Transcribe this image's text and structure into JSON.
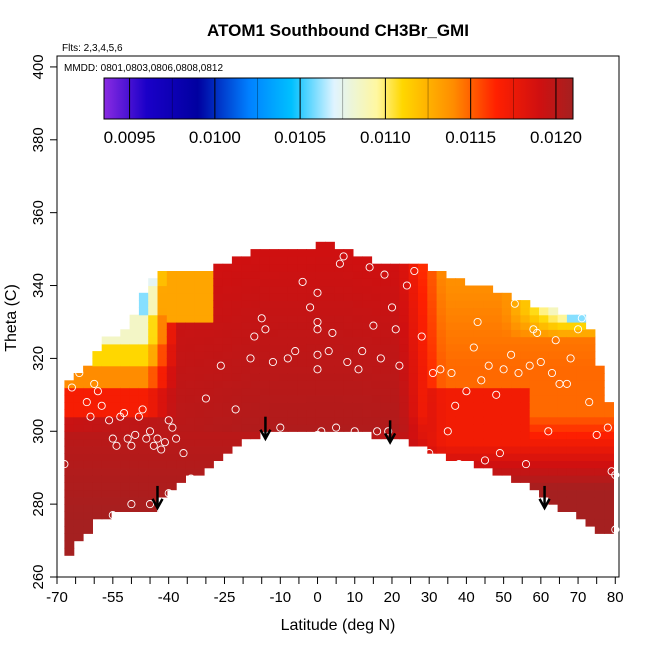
{
  "chart_data": {
    "type": "heatmap",
    "title": "ATOM1 Southbound CH3Br_GMI",
    "subtitle_flights": "Flts: 2,3,4,5,6",
    "subtitle_dates": "MMDD: 0801,0803,0806,0808,0812",
    "xlabel": "Latitude (deg N)",
    "ylabel": "Theta (C)",
    "xlim": [
      -70,
      81
    ],
    "ylim": [
      260,
      403
    ],
    "x_ticks": [
      -70,
      -55,
      -40,
      -25,
      -10,
      0,
      10,
      20,
      30,
      40,
      50,
      60,
      70,
      80
    ],
    "x_ticks_minor": [
      -65,
      -60,
      -50,
      -45,
      -35,
      -30,
      -20,
      -15,
      -5,
      5,
      15,
      25,
      35,
      45,
      55,
      65,
      75
    ],
    "y_ticks": [
      260,
      280,
      300,
      320,
      340,
      360,
      380,
      400
    ],
    "colorbar": {
      "ticks": [
        0.0095,
        0.01,
        0.0105,
        0.011,
        0.0115,
        0.012
      ],
      "tick_labels": [
        "0.0095",
        "0.0100",
        "0.0105",
        "0.0110",
        "0.0115",
        "0.0120"
      ],
      "range": [
        0.00935,
        0.0121
      ],
      "stops": [
        {
          "v": 0.00935,
          "c": "#8a2be2"
        },
        {
          "v": 0.0096,
          "c": "#1a00c8"
        },
        {
          "v": 0.0099,
          "c": "#0000a0"
        },
        {
          "v": 0.0102,
          "c": "#0080ff"
        },
        {
          "v": 0.01045,
          "c": "#00c0ff"
        },
        {
          "v": 0.0107,
          "c": "#e0f4ff"
        },
        {
          "v": 0.01095,
          "c": "#fff7a0"
        },
        {
          "v": 0.0111,
          "c": "#ffd700"
        },
        {
          "v": 0.0114,
          "c": "#ff8c00"
        },
        {
          "v": 0.01165,
          "c": "#ff2000"
        },
        {
          "v": 0.0119,
          "c": "#d01010"
        },
        {
          "v": 0.0121,
          "c": "#a52020"
        }
      ]
    },
    "field": {
      "upper_boundary": [
        [
          -68,
          312
        ],
        [
          -65,
          316
        ],
        [
          -60,
          320
        ],
        [
          -58,
          325
        ],
        [
          -54,
          327
        ],
        [
          -50,
          330
        ],
        [
          -48,
          335
        ],
        [
          -44,
          343
        ],
        [
          -40,
          343
        ],
        [
          -36,
          343
        ],
        [
          -30,
          344
        ],
        [
          -25,
          346
        ],
        [
          -20,
          348
        ],
        [
          -15,
          350
        ],
        [
          -10,
          350
        ],
        [
          -5,
          350
        ],
        [
          0,
          351
        ],
        [
          5,
          351
        ],
        [
          10,
          349
        ],
        [
          15,
          347
        ],
        [
          20,
          346
        ],
        [
          25,
          345
        ],
        [
          30,
          345
        ],
        [
          35,
          342
        ],
        [
          40,
          341
        ],
        [
          45,
          340
        ],
        [
          50,
          338
        ],
        [
          55,
          336
        ],
        [
          60,
          334
        ],
        [
          65,
          333
        ],
        [
          70,
          332
        ],
        [
          72,
          332
        ],
        [
          74,
          324
        ],
        [
          76,
          316
        ],
        [
          78,
          308
        ],
        [
          80,
          300
        ],
        [
          80,
          286
        ]
      ],
      "lower_boundary": [
        [
          -68,
          266
        ],
        [
          -65,
          268
        ],
        [
          -60,
          275
        ],
        [
          -55,
          277
        ],
        [
          -50,
          278
        ],
        [
          -45,
          278
        ],
        [
          -40,
          283
        ],
        [
          -35,
          287
        ],
        [
          -30,
          290
        ],
        [
          -25,
          293
        ],
        [
          -20,
          297
        ],
        [
          -15,
          299
        ],
        [
          -10,
          300
        ],
        [
          -5,
          300
        ],
        [
          0,
          300
        ],
        [
          5,
          300
        ],
        [
          10,
          300
        ],
        [
          15,
          299
        ],
        [
          20,
          299
        ],
        [
          25,
          297
        ],
        [
          30,
          295
        ],
        [
          35,
          293
        ],
        [
          40,
          292
        ],
        [
          45,
          290
        ],
        [
          50,
          288
        ],
        [
          55,
          286
        ],
        [
          60,
          283
        ],
        [
          65,
          279
        ],
        [
          70,
          276
        ],
        [
          75,
          273
        ],
        [
          80,
          272
        ],
        [
          80,
          286
        ]
      ],
      "value_model": [
        {
          "lat_min": -70,
          "lat_max": -40,
          "theta_max_yellow": 318,
          "theta_max_white": 326,
          "theta_blue": 334
        },
        {
          "lat_min": 25,
          "lat_max": 80,
          "orange_band": [
            305,
            345
          ]
        }
      ]
    },
    "observations": [
      [
        -68,
        291
      ],
      [
        -66,
        312
      ],
      [
        -64,
        316
      ],
      [
        -62,
        308
      ],
      [
        -61,
        304
      ],
      [
        -60,
        313
      ],
      [
        -59,
        311
      ],
      [
        -58,
        307
      ],
      [
        -56,
        303
      ],
      [
        -55,
        298
      ],
      [
        -54,
        296
      ],
      [
        -53,
        304
      ],
      [
        -52,
        305
      ],
      [
        -51,
        298
      ],
      [
        -50,
        296
      ],
      [
        -49,
        299
      ],
      [
        -48,
        304
      ],
      [
        -47,
        306
      ],
      [
        -46,
        298
      ],
      [
        -45,
        300
      ],
      [
        -44,
        296
      ],
      [
        -43,
        298
      ],
      [
        -42,
        295
      ],
      [
        -41,
        297
      ],
      [
        -40,
        303
      ],
      [
        -39,
        301
      ],
      [
        -38,
        298
      ],
      [
        -36,
        294
      ],
      [
        -55,
        277
      ],
      [
        -50,
        280
      ],
      [
        -45,
        280
      ],
      [
        -42,
        278
      ],
      [
        -40,
        283
      ],
      [
        -34,
        287
      ],
      [
        -30,
        309
      ],
      [
        -26,
        318
      ],
      [
        -22,
        306
      ],
      [
        -20,
        293
      ],
      [
        -18,
        320
      ],
      [
        -17,
        326
      ],
      [
        -15,
        331
      ],
      [
        -14,
        328
      ],
      [
        -12,
        319
      ],
      [
        -10,
        301
      ],
      [
        -8,
        320
      ],
      [
        -6,
        322
      ],
      [
        -4,
        341
      ],
      [
        -2,
        334
      ],
      [
        0,
        330
      ],
      [
        0,
        328
      ],
      [
        0,
        321
      ],
      [
        0,
        317
      ],
      [
        0,
        338
      ],
      [
        0,
        299
      ],
      [
        1,
        300
      ],
      [
        3,
        322
      ],
      [
        4,
        327
      ],
      [
        5,
        301
      ],
      [
        6,
        346
      ],
      [
        7,
        348
      ],
      [
        8,
        319
      ],
      [
        10,
        300
      ],
      [
        11,
        317
      ],
      [
        12,
        322
      ],
      [
        14,
        345
      ],
      [
        15,
        329
      ],
      [
        16,
        300
      ],
      [
        17,
        320
      ],
      [
        18,
        343
      ],
      [
        19,
        300
      ],
      [
        20,
        334
      ],
      [
        21,
        328
      ],
      [
        22,
        318
      ],
      [
        24,
        340
      ],
      [
        26,
        344
      ],
      [
        28,
        326
      ],
      [
        30,
        294
      ],
      [
        31,
        316
      ],
      [
        33,
        317
      ],
      [
        35,
        300
      ],
      [
        36,
        316
      ],
      [
        37,
        307
      ],
      [
        38,
        291
      ],
      [
        40,
        311
      ],
      [
        42,
        323
      ],
      [
        43,
        330
      ],
      [
        44,
        314
      ],
      [
        45,
        292
      ],
      [
        46,
        318
      ],
      [
        48,
        310
      ],
      [
        49,
        294
      ],
      [
        50,
        317
      ],
      [
        52,
        321
      ],
      [
        53,
        335
      ],
      [
        54,
        316
      ],
      [
        56,
        291
      ],
      [
        57,
        318
      ],
      [
        58,
        328
      ],
      [
        59,
        327
      ],
      [
        60,
        319
      ],
      [
        62,
        300
      ],
      [
        63,
        316
      ],
      [
        64,
        325
      ],
      [
        65,
        313
      ],
      [
        67,
        313
      ],
      [
        68,
        320
      ],
      [
        70,
        328
      ],
      [
        71,
        331
      ],
      [
        78,
        301
      ],
      [
        79,
        289
      ],
      [
        80,
        288
      ],
      [
        80,
        273
      ],
      [
        73,
        308
      ],
      [
        75,
        299
      ]
    ],
    "arrows": [
      [
        -43,
        285
      ],
      [
        -14,
        304
      ],
      [
        19.5,
        303
      ],
      [
        61,
        285
      ]
    ]
  }
}
